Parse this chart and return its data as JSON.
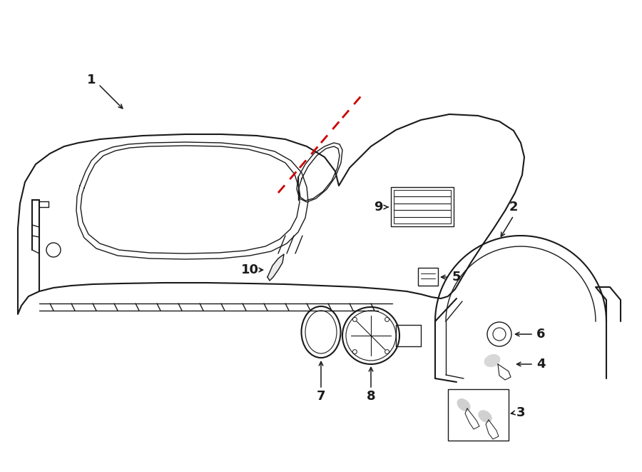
{
  "bg_color": "#ffffff",
  "line_color": "#1a1a1a",
  "red_dash_color": "#cc0000",
  "label_color": "#111111",
  "figsize": [
    9.0,
    6.61
  ],
  "dpi": 100
}
